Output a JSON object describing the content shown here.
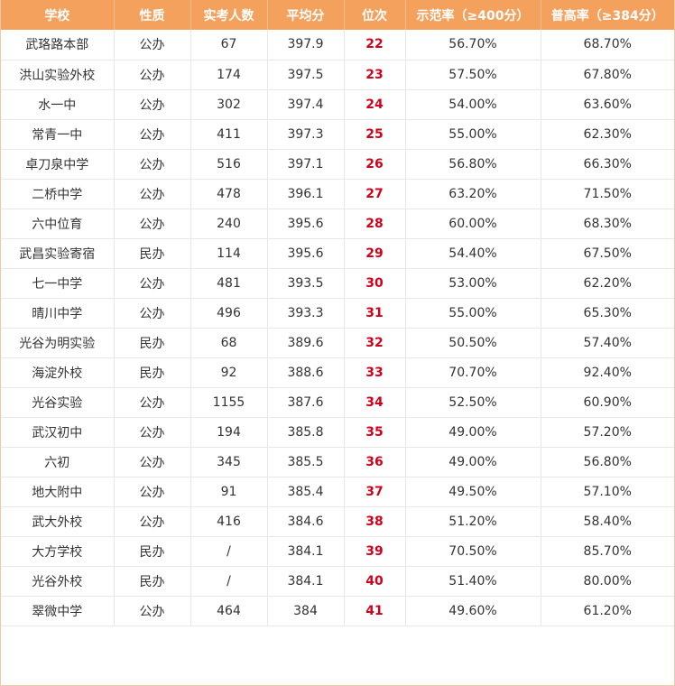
{
  "table": {
    "headers": [
      "学校",
      "性质",
      "实考人数",
      "平均分",
      "位次",
      "示范率（≥400分）",
      "普高率（≥384分）"
    ],
    "rows": [
      [
        "武珞路本部",
        "公办",
        "67",
        "397.9",
        "22",
        "56.70%",
        "68.70%"
      ],
      [
        "洪山实验外校",
        "公办",
        "174",
        "397.5",
        "23",
        "57.50%",
        "67.80%"
      ],
      [
        "水一中",
        "公办",
        "302",
        "397.4",
        "24",
        "54.00%",
        "63.60%"
      ],
      [
        "常青一中",
        "公办",
        "411",
        "397.3",
        "25",
        "55.00%",
        "62.30%"
      ],
      [
        "卓刀泉中学",
        "公办",
        "516",
        "397.1",
        "26",
        "56.80%",
        "66.30%"
      ],
      [
        "二桥中学",
        "公办",
        "478",
        "396.1",
        "27",
        "63.20%",
        "71.50%"
      ],
      [
        "六中位育",
        "公办",
        "240",
        "395.6",
        "28",
        "60.00%",
        "68.30%"
      ],
      [
        "武昌实验寄宿",
        "民办",
        "114",
        "395.6",
        "29",
        "54.40%",
        "67.50%"
      ],
      [
        "七一中学",
        "公办",
        "481",
        "393.5",
        "30",
        "53.00%",
        "62.20%"
      ],
      [
        "晴川中学",
        "公办",
        "496",
        "393.3",
        "31",
        "55.00%",
        "65.30%"
      ],
      [
        "光谷为明实验",
        "民办",
        "68",
        "389.6",
        "32",
        "50.50%",
        "57.40%"
      ],
      [
        "海淀外校",
        "民办",
        "92",
        "388.6",
        "33",
        "70.70%",
        "92.40%"
      ],
      [
        "光谷实验",
        "公办",
        "1155",
        "387.6",
        "34",
        "52.50%",
        "60.90%"
      ],
      [
        "武汉初中",
        "公办",
        "194",
        "385.8",
        "35",
        "49.00%",
        "57.20%"
      ],
      [
        "六初",
        "公办",
        "345",
        "385.5",
        "36",
        "49.00%",
        "56.80%"
      ],
      [
        "地大附中",
        "公办",
        "91",
        "385.4",
        "37",
        "49.50%",
        "57.10%"
      ],
      [
        "武大外校",
        "公办",
        "416",
        "384.6",
        "38",
        "51.20%",
        "58.40%"
      ],
      [
        "大方学校",
        "民办",
        "/",
        "384.1",
        "39",
        "70.50%",
        "85.70%"
      ],
      [
        "光谷外校",
        "民办",
        "/",
        "384.1",
        "40",
        "51.40%",
        "80.00%"
      ],
      [
        "翠微中学",
        "公办",
        "464",
        "384",
        "41",
        "49.60%",
        "61.20%"
      ]
    ]
  },
  "colors": {
    "header_bg": "#f4a15e",
    "header_text": "#ffffff",
    "rank_text": "#d0021b",
    "grid": "#e7e7e7"
  }
}
